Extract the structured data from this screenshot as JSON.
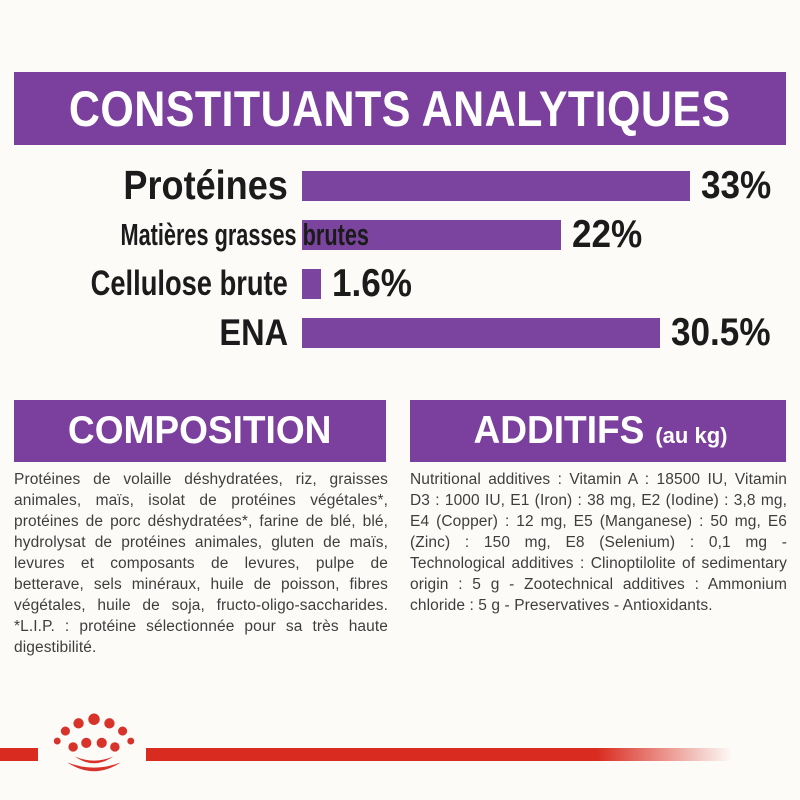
{
  "header": {},
  "chart_data": {
    "type": "bar",
    "orientation": "horizontal",
    "title": "CONSTITUANTS ANALYTIQUES",
    "categories": [
      "Protéines",
      "Matières grasses brutes",
      "Cellulose brute",
      "ENA"
    ],
    "values": [
      33,
      22,
      1.6,
      30.5
    ],
    "value_labels": [
      "33%",
      "22%",
      "1.6%",
      "30.5%"
    ],
    "xlim": [
      0,
      33
    ],
    "bar_color": "#7b449f",
    "grid": false,
    "legend": false
  },
  "sections": {
    "composition": {
      "title": "COMPOSITION",
      "body": "Protéines de volaille déshydratées, riz, graisses animales, maïs, isolat de protéines végétales*, protéines de porc déshydratées*, farine de blé, blé, hydrolysat de protéines animales, gluten de maïs, levures et composants de levures, pulpe de betterave, sels minéraux, huile de poisson, fibres végétales, huile de soja, fructo-oligo-saccharides. *L.I.P. : protéine sélectionnée pour sa très haute digestibilité."
    },
    "additifs": {
      "title": "ADDITIFS",
      "title_suffix": "(au kg)",
      "body": "Nutritional additives : Vitamin A : 18500 IU, Vitamin D3 : 1000 IU, E1 (Iron) : 38 mg, E2 (Iodine) : 3,8 mg, E4 (Copper) : 12 mg, E5 (Manganese) : 50 mg, E6 (Zinc) : 150 mg, E8 (Selenium) : 0,1 mg - Technological additives : Clinoptilolite of sedimentary origin : 5 g - Zootechnical additives : Ammonium chloride : 5 g - Preservatives - Antioxidants."
    }
  },
  "footer": {
    "logo": "royal-canin-crown-logo",
    "band_color": "#d92b1f",
    "logo_color": "#d8332a"
  },
  "colors": {
    "banner_purple": "#7b3f9e",
    "bar_purple": "#7b449f",
    "label_black": "#1b1b1b",
    "body_text": "#3e3e3e",
    "background": "#fcfbf8"
  }
}
